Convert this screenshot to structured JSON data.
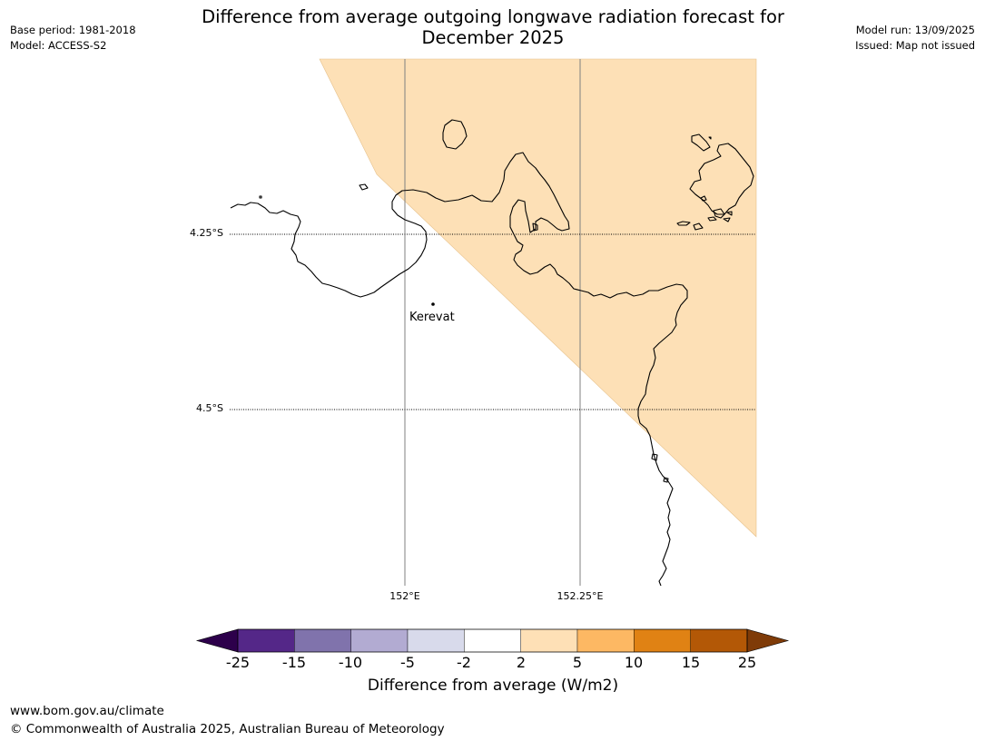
{
  "header": {
    "title_line1": "Difference from average outgoing longwave radiation forecast for",
    "title_line2": "December 2025",
    "base_period": "Base period: 1981-2018",
    "model": "Model: ACCESS-S2",
    "model_run": "Model run: 13/09/2025",
    "issued": "Issued: Map not issued"
  },
  "map": {
    "lat_labels": [
      "4.25°S",
      "4.5°S"
    ],
    "lon_labels": [
      "152°E",
      "152.25°E"
    ],
    "place": "Kerevat",
    "forecast_category_fill": "#fde0b6"
  },
  "colorbar": {
    "label": "Difference from average (W/m2)",
    "ticks": [
      "-25",
      "-15",
      "-10",
      "-5",
      "-2",
      "2",
      "5",
      "10",
      "15",
      "25"
    ],
    "colors": [
      "#542788",
      "#8073ac",
      "#b2abd2",
      "#d8daeb",
      "#ffffff",
      "#fee0b6",
      "#fdb863",
      "#e08214",
      "#b35806"
    ],
    "low_extend_color": "#2d004b",
    "high_extend_color": "#7f3b08"
  },
  "footer": {
    "url": "www.bom.gov.au/climate",
    "copyright": "© Commonwealth of Australia 2025, Australian Bureau of Meteorology"
  }
}
